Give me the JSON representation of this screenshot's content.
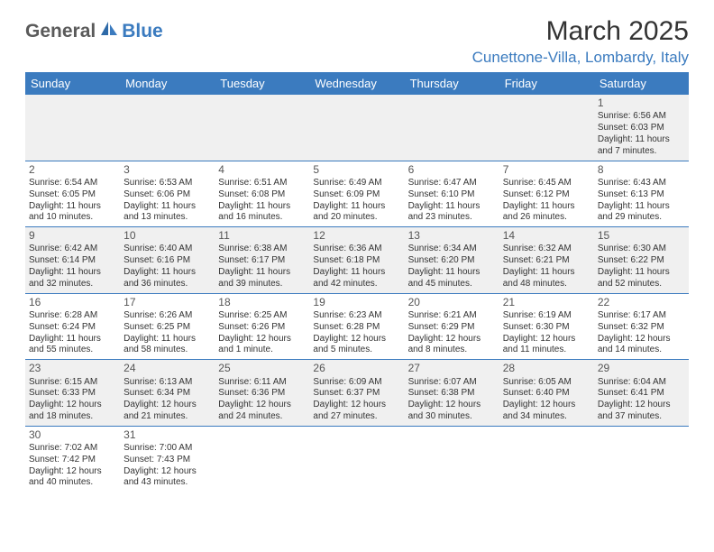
{
  "brand": {
    "main": "General",
    "accent": "Blue"
  },
  "title": "March 2025",
  "location": "Cunettone-Villa, Lombardy, Italy",
  "colors": {
    "header_bg": "#3b7bbf",
    "header_fg": "#ffffff",
    "row_alt_bg": "#f0f0f0",
    "logo_gray": "#5a5a5a",
    "logo_blue": "#3b7bbf"
  },
  "weekdays": [
    "Sunday",
    "Monday",
    "Tuesday",
    "Wednesday",
    "Thursday",
    "Friday",
    "Saturday"
  ],
  "weeks": [
    [
      null,
      null,
      null,
      null,
      null,
      null,
      {
        "d": "1",
        "sr": "Sunrise: 6:56 AM",
        "ss": "Sunset: 6:03 PM",
        "dl": "Daylight: 11 hours and 7 minutes."
      }
    ],
    [
      {
        "d": "2",
        "sr": "Sunrise: 6:54 AM",
        "ss": "Sunset: 6:05 PM",
        "dl": "Daylight: 11 hours and 10 minutes."
      },
      {
        "d": "3",
        "sr": "Sunrise: 6:53 AM",
        "ss": "Sunset: 6:06 PM",
        "dl": "Daylight: 11 hours and 13 minutes."
      },
      {
        "d": "4",
        "sr": "Sunrise: 6:51 AM",
        "ss": "Sunset: 6:08 PM",
        "dl": "Daylight: 11 hours and 16 minutes."
      },
      {
        "d": "5",
        "sr": "Sunrise: 6:49 AM",
        "ss": "Sunset: 6:09 PM",
        "dl": "Daylight: 11 hours and 20 minutes."
      },
      {
        "d": "6",
        "sr": "Sunrise: 6:47 AM",
        "ss": "Sunset: 6:10 PM",
        "dl": "Daylight: 11 hours and 23 minutes."
      },
      {
        "d": "7",
        "sr": "Sunrise: 6:45 AM",
        "ss": "Sunset: 6:12 PM",
        "dl": "Daylight: 11 hours and 26 minutes."
      },
      {
        "d": "8",
        "sr": "Sunrise: 6:43 AM",
        "ss": "Sunset: 6:13 PM",
        "dl": "Daylight: 11 hours and 29 minutes."
      }
    ],
    [
      {
        "d": "9",
        "sr": "Sunrise: 6:42 AM",
        "ss": "Sunset: 6:14 PM",
        "dl": "Daylight: 11 hours and 32 minutes."
      },
      {
        "d": "10",
        "sr": "Sunrise: 6:40 AM",
        "ss": "Sunset: 6:16 PM",
        "dl": "Daylight: 11 hours and 36 minutes."
      },
      {
        "d": "11",
        "sr": "Sunrise: 6:38 AM",
        "ss": "Sunset: 6:17 PM",
        "dl": "Daylight: 11 hours and 39 minutes."
      },
      {
        "d": "12",
        "sr": "Sunrise: 6:36 AM",
        "ss": "Sunset: 6:18 PM",
        "dl": "Daylight: 11 hours and 42 minutes."
      },
      {
        "d": "13",
        "sr": "Sunrise: 6:34 AM",
        "ss": "Sunset: 6:20 PM",
        "dl": "Daylight: 11 hours and 45 minutes."
      },
      {
        "d": "14",
        "sr": "Sunrise: 6:32 AM",
        "ss": "Sunset: 6:21 PM",
        "dl": "Daylight: 11 hours and 48 minutes."
      },
      {
        "d": "15",
        "sr": "Sunrise: 6:30 AM",
        "ss": "Sunset: 6:22 PM",
        "dl": "Daylight: 11 hours and 52 minutes."
      }
    ],
    [
      {
        "d": "16",
        "sr": "Sunrise: 6:28 AM",
        "ss": "Sunset: 6:24 PM",
        "dl": "Daylight: 11 hours and 55 minutes."
      },
      {
        "d": "17",
        "sr": "Sunrise: 6:26 AM",
        "ss": "Sunset: 6:25 PM",
        "dl": "Daylight: 11 hours and 58 minutes."
      },
      {
        "d": "18",
        "sr": "Sunrise: 6:25 AM",
        "ss": "Sunset: 6:26 PM",
        "dl": "Daylight: 12 hours and 1 minute."
      },
      {
        "d": "19",
        "sr": "Sunrise: 6:23 AM",
        "ss": "Sunset: 6:28 PM",
        "dl": "Daylight: 12 hours and 5 minutes."
      },
      {
        "d": "20",
        "sr": "Sunrise: 6:21 AM",
        "ss": "Sunset: 6:29 PM",
        "dl": "Daylight: 12 hours and 8 minutes."
      },
      {
        "d": "21",
        "sr": "Sunrise: 6:19 AM",
        "ss": "Sunset: 6:30 PM",
        "dl": "Daylight: 12 hours and 11 minutes."
      },
      {
        "d": "22",
        "sr": "Sunrise: 6:17 AM",
        "ss": "Sunset: 6:32 PM",
        "dl": "Daylight: 12 hours and 14 minutes."
      }
    ],
    [
      {
        "d": "23",
        "sr": "Sunrise: 6:15 AM",
        "ss": "Sunset: 6:33 PM",
        "dl": "Daylight: 12 hours and 18 minutes."
      },
      {
        "d": "24",
        "sr": "Sunrise: 6:13 AM",
        "ss": "Sunset: 6:34 PM",
        "dl": "Daylight: 12 hours and 21 minutes."
      },
      {
        "d": "25",
        "sr": "Sunrise: 6:11 AM",
        "ss": "Sunset: 6:36 PM",
        "dl": "Daylight: 12 hours and 24 minutes."
      },
      {
        "d": "26",
        "sr": "Sunrise: 6:09 AM",
        "ss": "Sunset: 6:37 PM",
        "dl": "Daylight: 12 hours and 27 minutes."
      },
      {
        "d": "27",
        "sr": "Sunrise: 6:07 AM",
        "ss": "Sunset: 6:38 PM",
        "dl": "Daylight: 12 hours and 30 minutes."
      },
      {
        "d": "28",
        "sr": "Sunrise: 6:05 AM",
        "ss": "Sunset: 6:40 PM",
        "dl": "Daylight: 12 hours and 34 minutes."
      },
      {
        "d": "29",
        "sr": "Sunrise: 6:04 AM",
        "ss": "Sunset: 6:41 PM",
        "dl": "Daylight: 12 hours and 37 minutes."
      }
    ],
    [
      {
        "d": "30",
        "sr": "Sunrise: 7:02 AM",
        "ss": "Sunset: 7:42 PM",
        "dl": "Daylight: 12 hours and 40 minutes."
      },
      {
        "d": "31",
        "sr": "Sunrise: 7:00 AM",
        "ss": "Sunset: 7:43 PM",
        "dl": "Daylight: 12 hours and 43 minutes."
      },
      null,
      null,
      null,
      null,
      null
    ]
  ]
}
